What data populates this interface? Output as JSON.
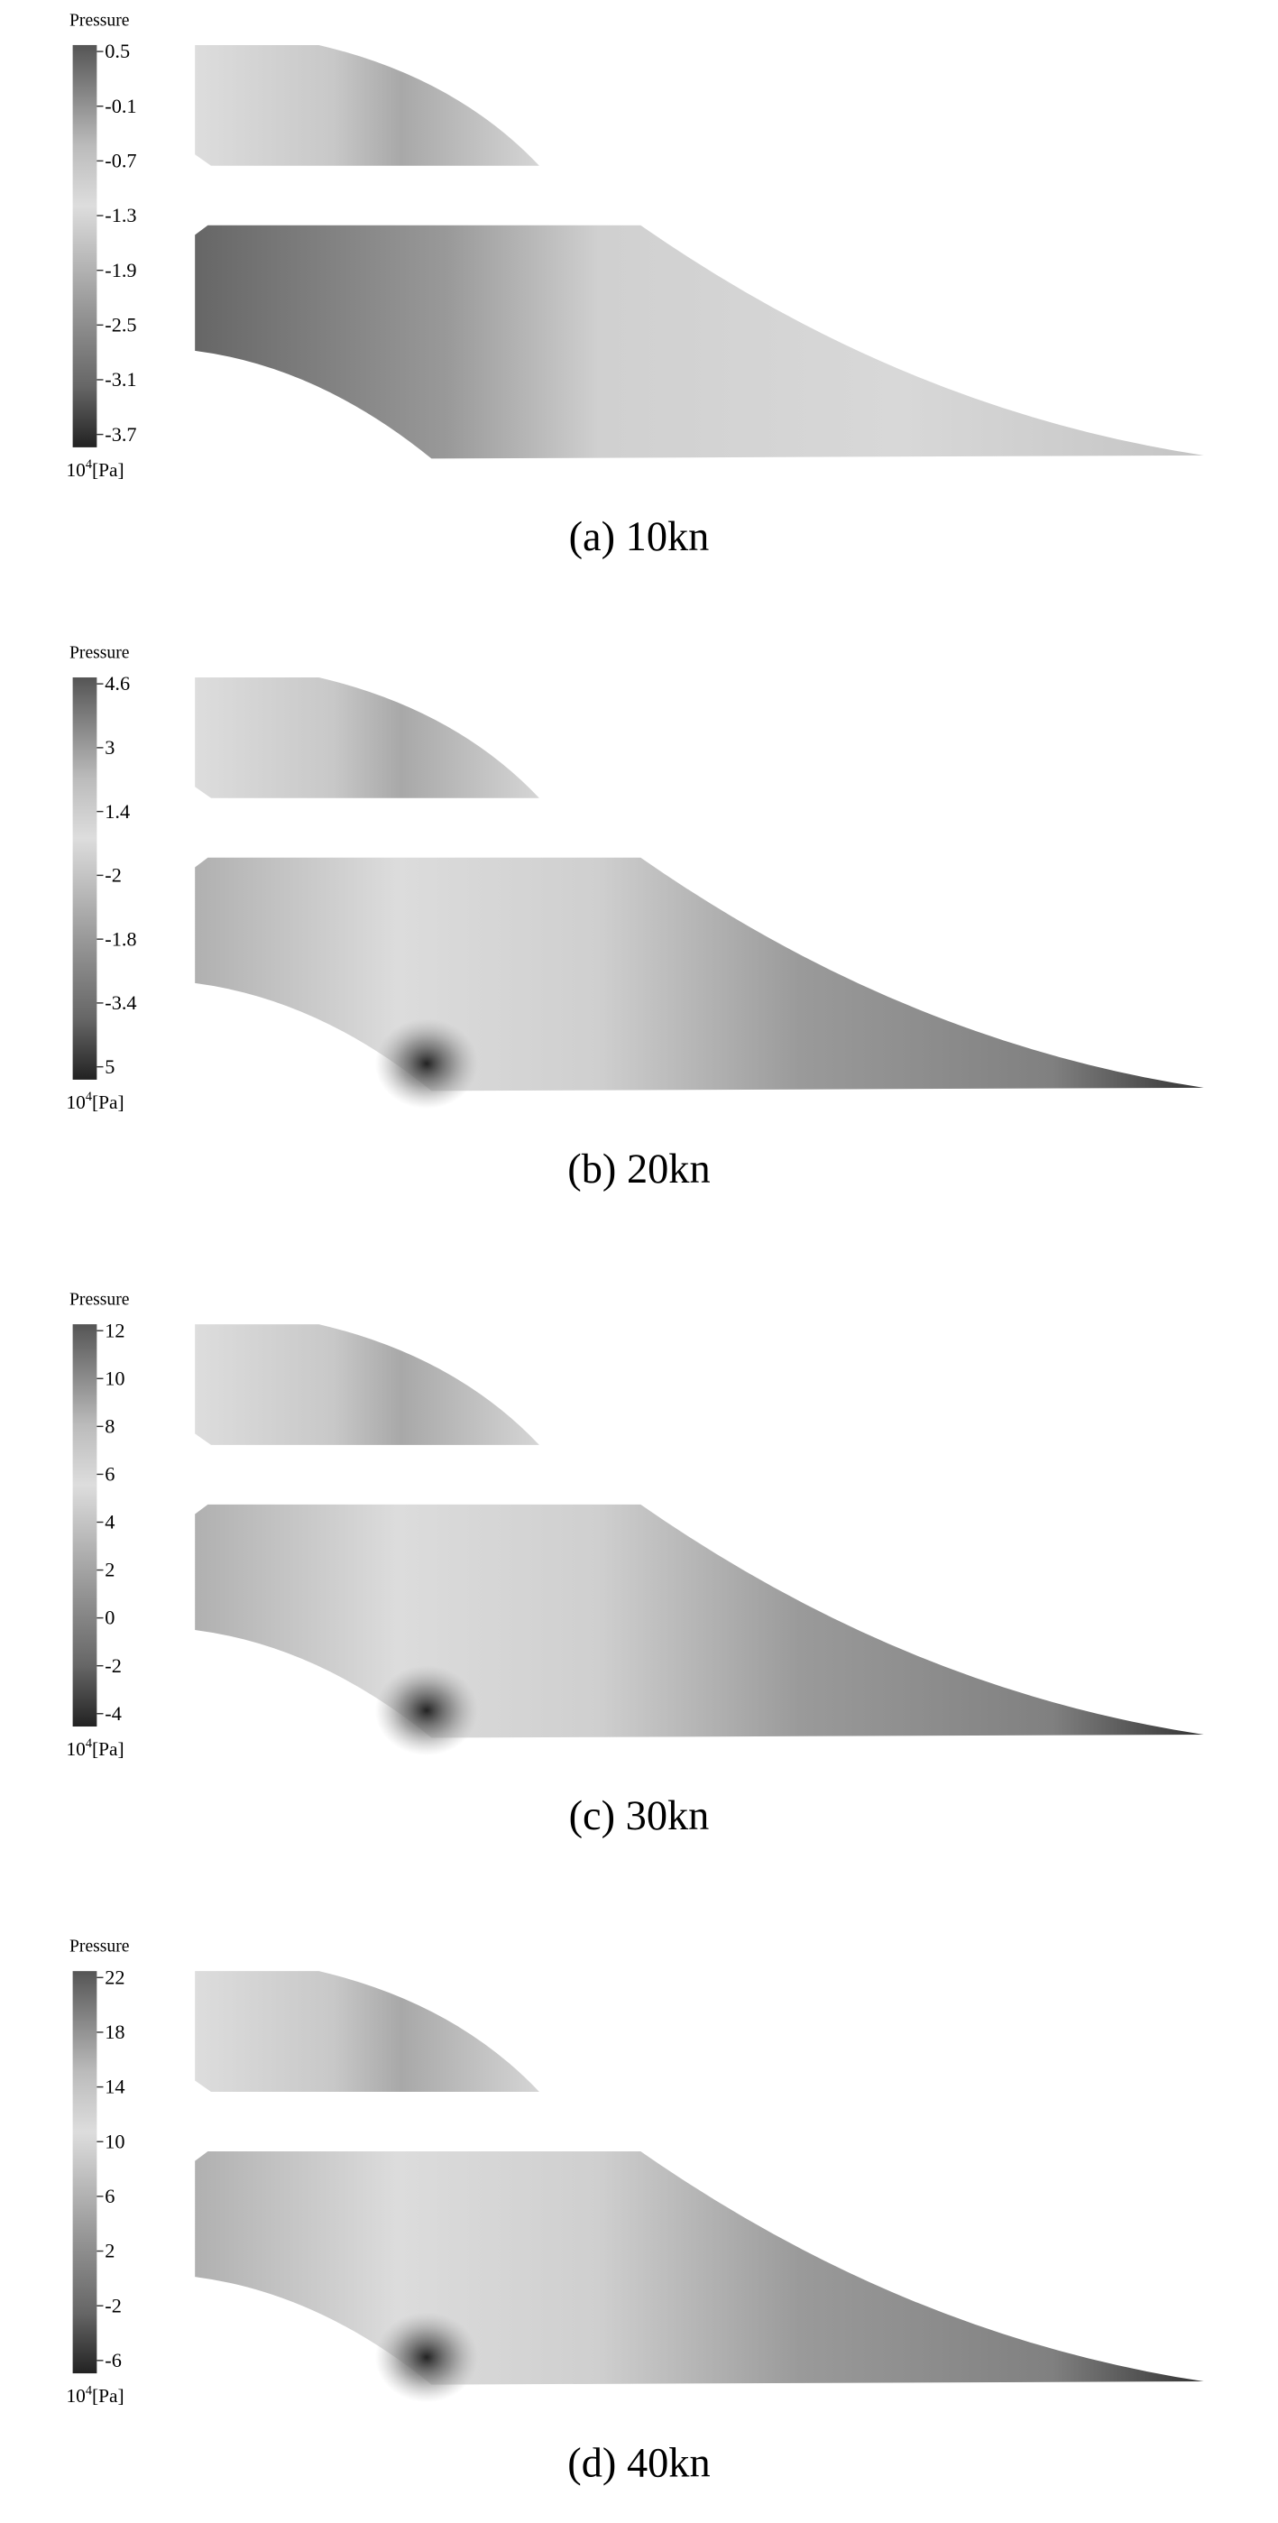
{
  "panels": [
    {
      "legend_title": "Pressure",
      "ticks": [
        "0.5",
        "-0.1",
        "-0.7",
        "-1.3",
        "-1.9",
        "-2.5",
        "-3.1",
        "-3.7"
      ],
      "unit_base": "10",
      "unit_exponent": "4",
      "unit_suffix": "[Pa]",
      "caption": "(a) 10kn"
    },
    {
      "legend_title": "Pressure",
      "ticks": [
        "4.6",
        "3",
        "1.4",
        "-2",
        "-1.8",
        "-3.4",
        "5"
      ],
      "unit_base": "10",
      "unit_exponent": "4",
      "unit_suffix": "[Pa]",
      "caption": "(b) 20kn"
    },
    {
      "legend_title": "Pressure",
      "ticks": [
        "12",
        "10",
        "8",
        "6",
        "4",
        "2",
        "0",
        "-2",
        "-4"
      ],
      "unit_base": "10",
      "unit_exponent": "4",
      "unit_suffix": "[Pa]",
      "caption": "(c) 30kn"
    },
    {
      "legend_title": "Pressure",
      "ticks": [
        "22",
        "18",
        "14",
        "10",
        "6",
        "2",
        "-2",
        "-6"
      ],
      "unit_base": "10",
      "unit_exponent": "4",
      "unit_suffix": "[Pa]",
      "caption": "(d) 40kn"
    }
  ]
}
